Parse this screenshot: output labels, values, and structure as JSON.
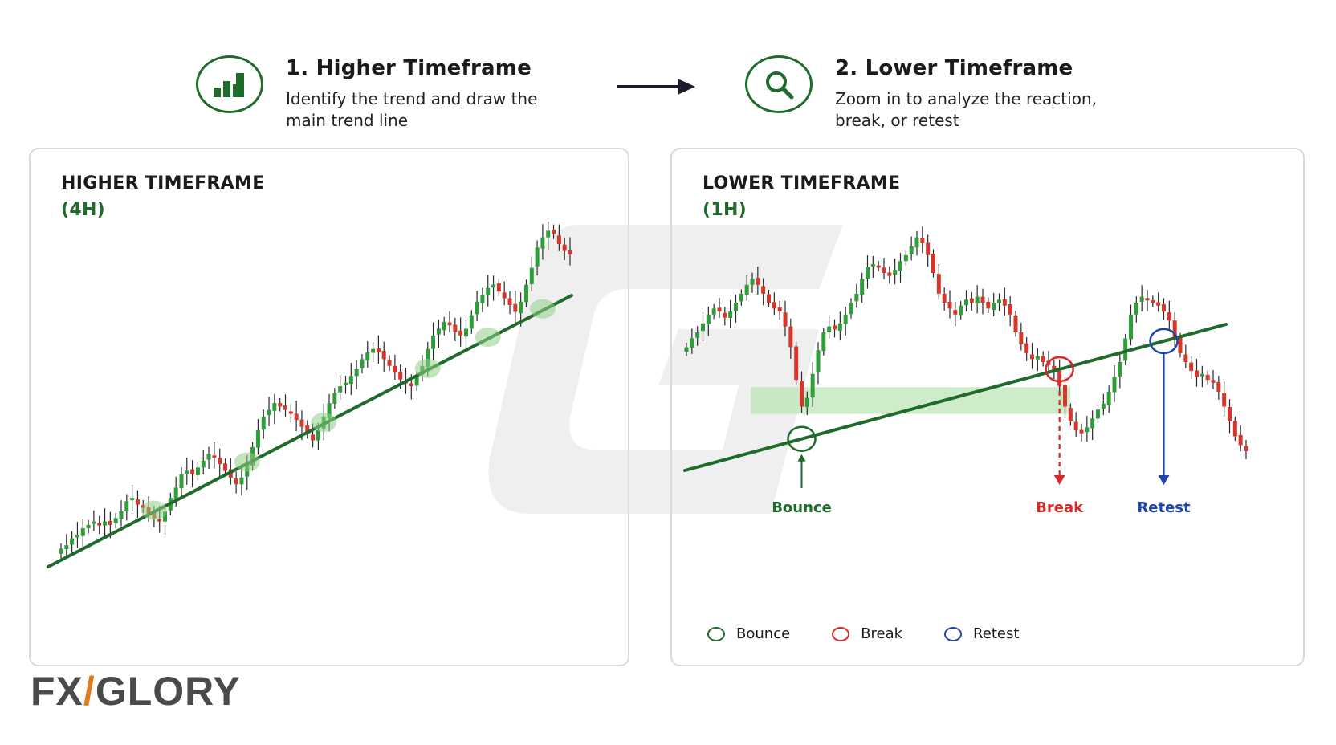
{
  "header": {
    "step1": {
      "title": "1. Higher Timeframe",
      "desc": "Identify the trend and draw the main trend line",
      "icon": "bar-chart-icon"
    },
    "step2": {
      "title": "2. Lower Timeframe",
      "desc": "Zoom in to analyze the reaction, break, or retest",
      "icon": "magnifier-icon"
    },
    "arrow_icon": "arrow-right-icon"
  },
  "brand": {
    "name": "FXGLORY",
    "x_accent_color": "#e07a1f"
  },
  "colors": {
    "bull": "#2e9e3a",
    "bear": "#d9362b",
    "trendline": "#1e6b2c",
    "bounce": "#1e6b2c",
    "break": "#d42a2a",
    "retest": "#1f45a8",
    "zone": "#b9e2b4"
  },
  "chart_data": [
    {
      "type": "candlestick",
      "title": "HIGHER TIMEFRAME",
      "subtitle": "(4H)",
      "grid": false,
      "close_series": [
        3,
        4,
        6,
        7,
        9,
        10,
        11,
        10,
        11,
        10,
        12,
        14,
        17,
        18,
        16,
        15,
        13,
        12,
        11,
        14,
        18,
        21,
        25,
        26,
        25,
        27,
        29,
        31,
        30,
        28,
        26,
        24,
        22,
        24,
        28,
        33,
        38,
        42,
        44,
        46,
        45,
        44,
        43,
        41,
        39,
        37,
        35,
        38,
        42,
        46,
        49,
        51,
        52,
        54,
        56,
        59,
        61,
        62,
        61,
        59,
        57,
        55,
        53,
        52,
        51,
        54,
        57,
        62,
        66,
        68,
        70,
        69,
        67,
        66,
        68,
        72,
        76,
        78,
        80,
        81,
        79,
        77,
        75,
        73,
        76,
        81,
        86,
        92,
        95,
        97,
        96,
        93,
        91,
        90
      ],
      "trendline": {
        "from": [
          0,
          0
        ],
        "to": [
          93,
          60
        ]
      },
      "touch_points": [
        17,
        34,
        48,
        67,
        78,
        88
      ]
    },
    {
      "type": "candlestick",
      "title": "LOWER TIMEFRAME",
      "subtitle": "(1H)",
      "grid": false,
      "close_series": [
        55,
        58,
        60,
        63,
        66,
        68,
        67,
        65,
        67,
        70,
        73,
        76,
        78,
        76,
        73,
        70,
        68,
        67,
        62,
        55,
        44,
        35,
        38,
        46,
        54,
        60,
        62,
        61,
        63,
        66,
        70,
        73,
        78,
        82,
        83,
        82,
        80,
        79,
        81,
        84,
        86,
        89,
        92,
        90,
        86,
        80,
        73,
        70,
        68,
        66,
        69,
        71,
        70,
        72,
        70,
        68,
        70,
        71,
        69,
        66,
        60,
        56,
        53,
        51,
        52,
        50,
        49,
        47,
        42,
        35,
        30,
        27,
        26,
        28,
        31,
        34,
        36,
        40,
        45,
        50,
        58,
        66,
        70,
        72,
        71,
        70,
        69,
        67,
        64,
        58,
        53,
        50,
        47,
        45,
        46,
        44,
        43,
        40,
        35,
        30,
        25,
        22,
        20
      ],
      "trendline": {
        "from": [
          0,
          12
        ],
        "to": [
          102,
          70
        ]
      },
      "zone": {
        "x_from": 12,
        "x_to": 70,
        "y_from": 32,
        "y_to": 41
      },
      "annotations": [
        {
          "label": "Bounce",
          "index": 21,
          "kind": "bounce",
          "color": "#1e6b2c"
        },
        {
          "label": "Break",
          "index": 68,
          "kind": "break",
          "color": "#d42a2a"
        },
        {
          "label": "Retest",
          "index": 87,
          "kind": "retest",
          "color": "#1f45a8"
        }
      ],
      "legend": [
        {
          "label": "Bounce",
          "color": "#1e6b2c"
        },
        {
          "label": "Break",
          "color": "#d42a2a"
        },
        {
          "label": "Retest",
          "color": "#1f45a8"
        }
      ]
    }
  ]
}
